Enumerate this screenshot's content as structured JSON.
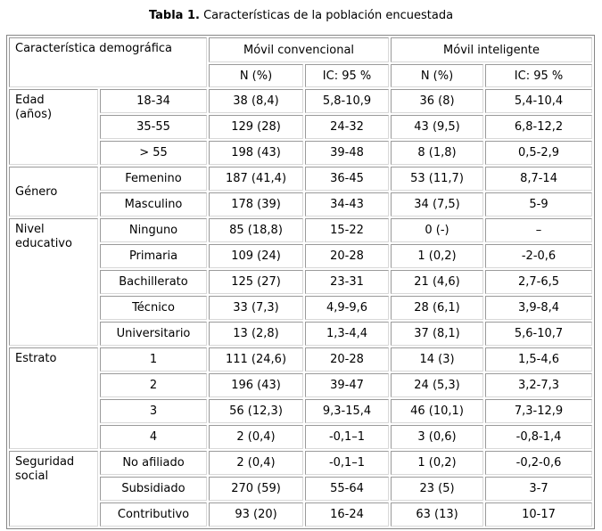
{
  "title": {
    "bold": "Tabla 1.",
    "rest": "Características de la población encuestada"
  },
  "table": {
    "corner_header": "Característica demográfica",
    "column_groups": [
      {
        "label": "Móvil convencional",
        "subcolumns": [
          "N (%)",
          "IC: 95 %"
        ]
      },
      {
        "label": "Móvil inteligente",
        "subcolumns": [
          "N (%)",
          "IC: 95 %"
        ]
      }
    ],
    "row_groups": [
      {
        "category": "Edad (años)",
        "rows": [
          {
            "label": "18-34",
            "cells": [
              "38 (8,4)",
              "5,8-10,9",
              "36 (8)",
              "5,4-10,4"
            ]
          },
          {
            "label": "35-55",
            "cells": [
              "129 (28)",
              "24-32",
              "43 (9,5)",
              "6,8-12,2"
            ]
          },
          {
            "label": "> 55",
            "cells": [
              "198 (43)",
              "39-48",
              "8 (1,8)",
              "0,5-2,9"
            ]
          }
        ]
      },
      {
        "category": "Género",
        "rows": [
          {
            "label": "Femenino",
            "cells": [
              "187 (41,4)",
              "36-45",
              "53 (11,7)",
              "8,7-14"
            ]
          },
          {
            "label": "Masculino",
            "cells": [
              "178 (39)",
              "34-43",
              "34 (7,5)",
              "5-9"
            ]
          }
        ]
      },
      {
        "category": "Nivel educativo",
        "rows": [
          {
            "label": "Ninguno",
            "cells": [
              "85 (18,8)",
              "15-22",
              "0 (-)",
              "–"
            ]
          },
          {
            "label": "Primaria",
            "cells": [
              "109 (24)",
              "20-28",
              "1 (0,2)",
              "-2-0,6"
            ]
          },
          {
            "label": "Bachillerato",
            "cells": [
              "125 (27)",
              "23-31",
              "21 (4,6)",
              "2,7-6,5"
            ]
          },
          {
            "label": "Técnico",
            "cells": [
              "33 (7,3)",
              "4,9-9,6",
              "28 (6,1)",
              "3,9-8,4"
            ]
          },
          {
            "label": "Universitario",
            "cells": [
              "13 (2,8)",
              "1,3-4,4",
              "37 (8,1)",
              "5,6-10,7"
            ]
          }
        ]
      },
      {
        "category": "Estrato",
        "rows": [
          {
            "label": "1",
            "cells": [
              "111 (24,6)",
              "20-28",
              "14 (3)",
              "1,5-4,6"
            ]
          },
          {
            "label": "2",
            "cells": [
              "196 (43)",
              "39-47",
              "24 (5,3)",
              "3,2-7,3"
            ]
          },
          {
            "label": "3",
            "cells": [
              "56 (12,3)",
              "9,3-15,4",
              "46 (10,1)",
              "7,3-12,9"
            ]
          },
          {
            "label": "4",
            "cells": [
              "2 (0,4)",
              "-0,1–1",
              "3 (0,6)",
              "-0,8-1,4"
            ]
          }
        ]
      },
      {
        "category": "Seguridad social",
        "rows": [
          {
            "label": "No afiliado",
            "cells": [
              "2 (0,4)",
              "-0,1–1",
              "1 (0,2)",
              "-0,2-0,6"
            ]
          },
          {
            "label": "Subsidiado",
            "cells": [
              "270 (59)",
              "55-64",
              "23 (5)",
              "3-7"
            ]
          },
          {
            "label": "Contributivo",
            "cells": [
              "93 (20)",
              "16-24",
              "63 (13)",
              "10-17"
            ]
          }
        ]
      }
    ]
  },
  "colors": {
    "frame_border": "#868686",
    "cell_border_dark": "#9a9a9a",
    "cell_border_light": "#d8d8d8",
    "text": "#000000",
    "background": "#ffffff"
  }
}
